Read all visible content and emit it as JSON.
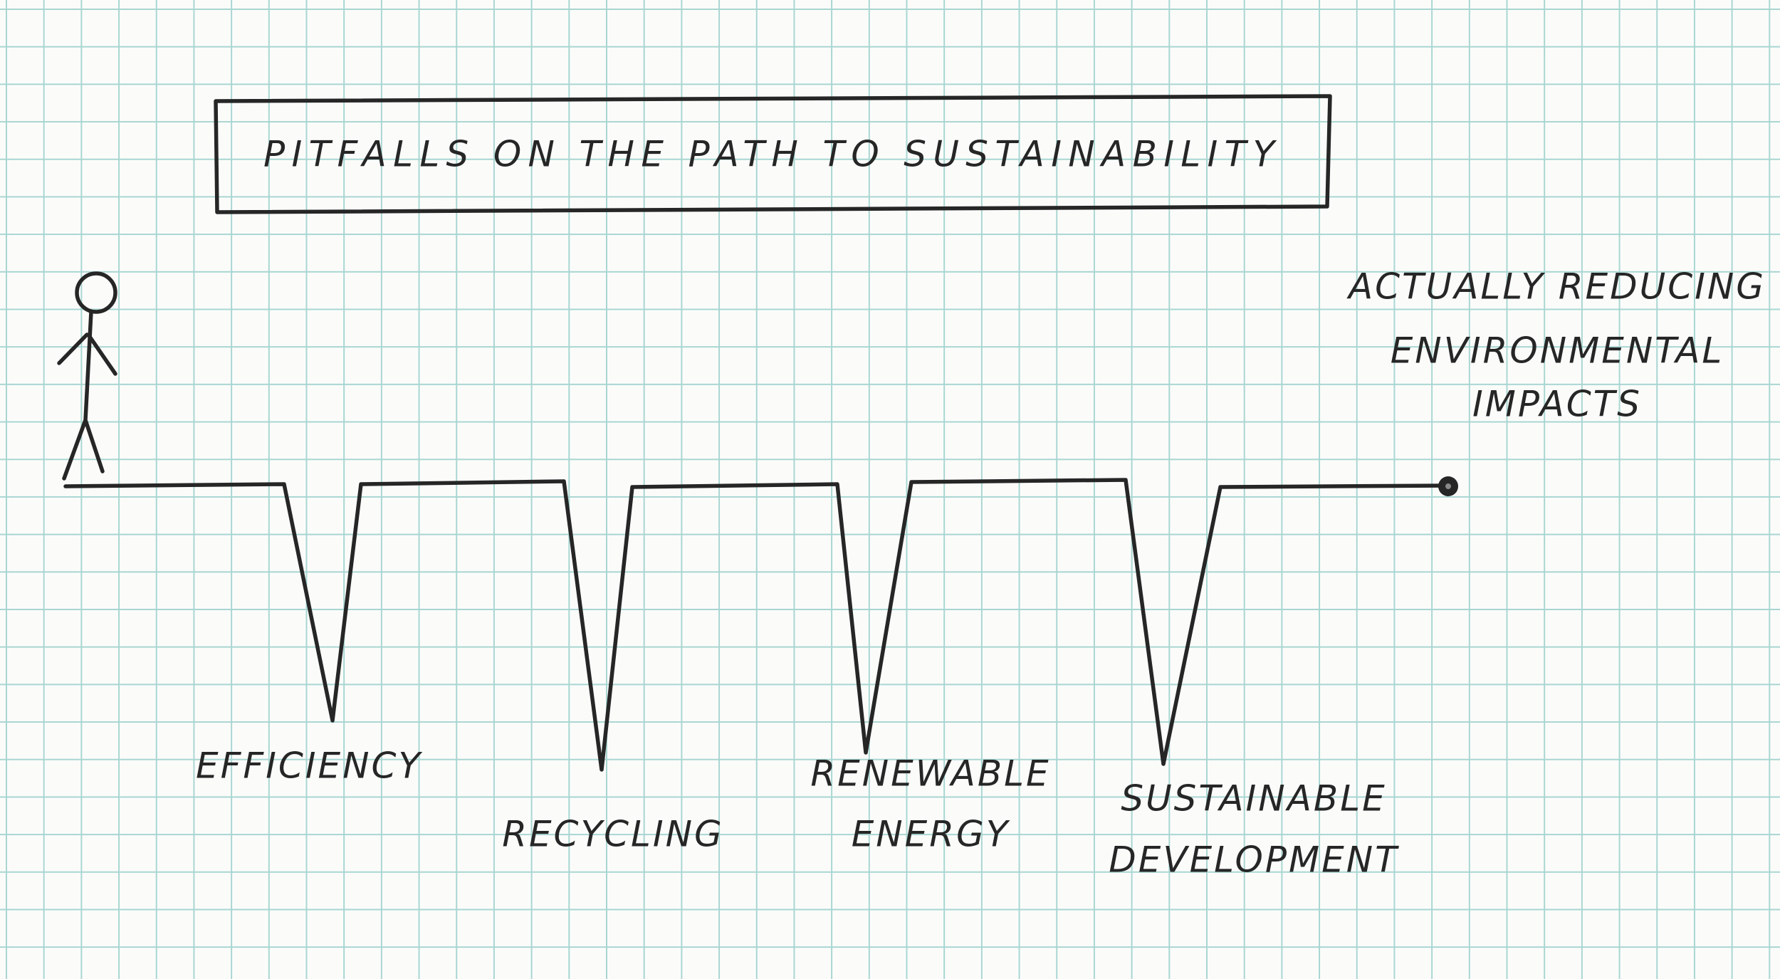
{
  "title": "PITFALLS ON THE PATH TO SUSTAINABILITY",
  "pitfalls": [
    {
      "lines": [
        "EFFICIENCY"
      ]
    },
    {
      "lines": [
        "RECYCLING"
      ]
    },
    {
      "lines": [
        "RENEWABLE",
        "ENERGY"
      ]
    },
    {
      "lines": [
        "SUSTAINABLE",
        "DEVELOPMENT"
      ]
    }
  ],
  "goal": {
    "lines": [
      "ACTUALLY REDUCING",
      "ENVIRONMENTAL",
      "IMPACTS"
    ]
  }
}
